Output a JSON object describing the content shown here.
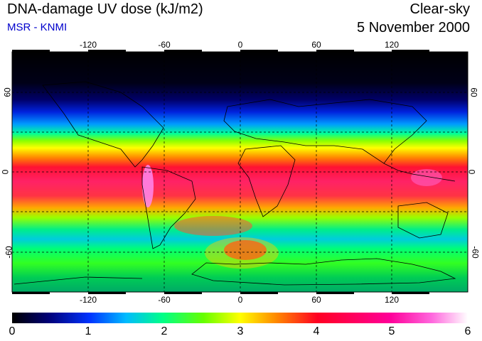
{
  "header": {
    "title": "DNA-damage UV dose (kJ/m2)",
    "source": "MSR - KNMI",
    "condition": "Clear-sky",
    "date": "5 November 2000"
  },
  "colors": {
    "source_text": "#0000cc",
    "colormap": [
      "#000000",
      "#0000aa",
      "#0033ff",
      "#00ccff",
      "#00ff66",
      "#66ff00",
      "#ffff00",
      "#ff8800",
      "#ff0033",
      "#ff0099",
      "#ff66dd",
      "#ffffff"
    ]
  },
  "axes": {
    "lon_ticks": [
      "-120",
      "-60",
      "0",
      "60",
      "120"
    ],
    "lat_ticks_left": [
      "60",
      "0",
      "-60"
    ],
    "lat_ticks_right": [
      "60",
      "0",
      "-60"
    ]
  },
  "colorbar": {
    "labels": [
      "0",
      "1",
      "2",
      "3",
      "4",
      "5",
      "6"
    ]
  },
  "chart_data": {
    "type": "heatmap",
    "title": "DNA-damage UV dose (kJ/m2)",
    "x_range": [
      -180,
      180
    ],
    "y_range": [
      -90,
      90
    ],
    "grid": true,
    "colorbar_range": [
      0,
      6
    ],
    "zonal_profile": [
      {
        "lat": 90,
        "value": 0.0
      },
      {
        "lat": 70,
        "value": 0.1
      },
      {
        "lat": 60,
        "value": 0.4
      },
      {
        "lat": 50,
        "value": 0.9
      },
      {
        "lat": 40,
        "value": 1.6
      },
      {
        "lat": 30,
        "value": 2.6
      },
      {
        "lat": 20,
        "value": 3.5
      },
      {
        "lat": 10,
        "value": 4.3
      },
      {
        "lat": 0,
        "value": 4.5
      },
      {
        "lat": -10,
        "value": 4.6
      },
      {
        "lat": -20,
        "value": 4.4
      },
      {
        "lat": -30,
        "value": 3.9
      },
      {
        "lat": -40,
        "value": 2.4
      },
      {
        "lat": -50,
        "value": 2.2
      },
      {
        "lat": -60,
        "value": 2.6
      },
      {
        "lat": -70,
        "value": 2.3
      },
      {
        "lat": -80,
        "value": 1.6
      },
      {
        "lat": -90,
        "value": 1.5
      }
    ]
  }
}
